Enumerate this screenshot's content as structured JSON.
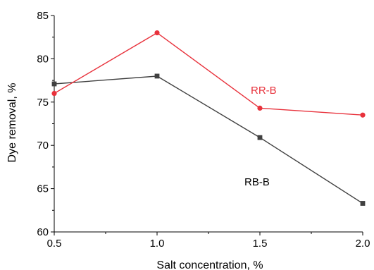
{
  "chart_data": {
    "type": "line",
    "xlabel": "Salt concentration, %",
    "ylabel": "Dye removal, %",
    "xlim": [
      0.5,
      2.0
    ],
    "ylim": [
      60,
      85
    ],
    "x_ticks": [
      "0.5",
      "1.0",
      "1.5",
      "2.0"
    ],
    "y_ticks": [
      "60",
      "65",
      "70",
      "75",
      "80",
      "85"
    ],
    "grid": false,
    "legend": "inline labels",
    "series": [
      {
        "name": "RR-B",
        "color": "#e8323c",
        "marker": "circle",
        "x": [
          0.5,
          1.0,
          1.5,
          2.0
        ],
        "y": [
          76.0,
          83.0,
          74.3,
          73.5
        ]
      },
      {
        "name": "RB-B",
        "color": "#404040",
        "marker": "square",
        "x": [
          0.5,
          1.0,
          1.5,
          2.0
        ],
        "y": [
          77.1,
          78.0,
          70.9,
          63.3
        ]
      }
    ]
  }
}
